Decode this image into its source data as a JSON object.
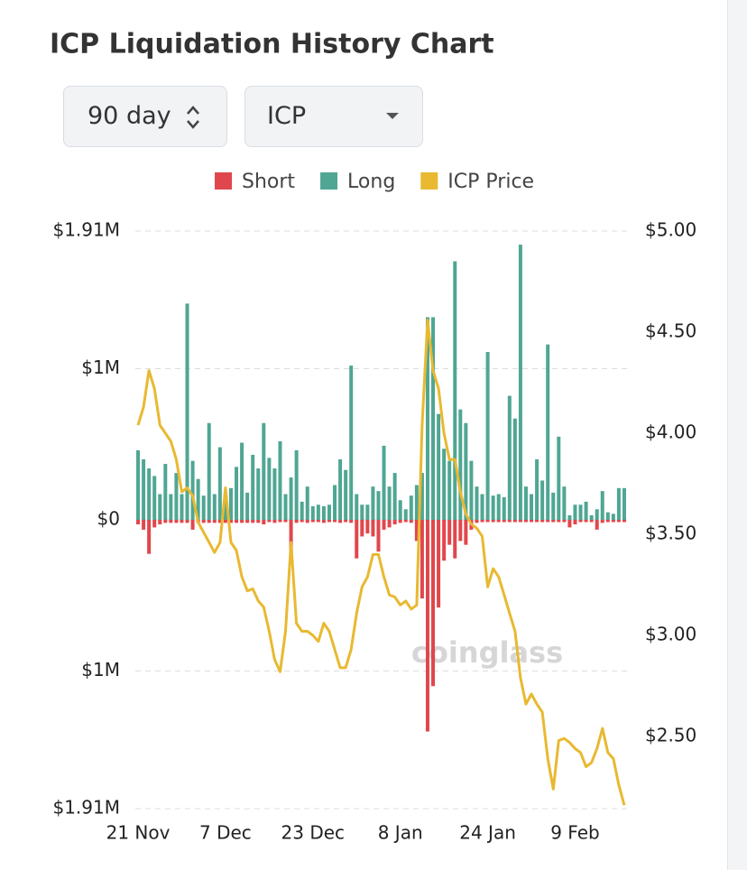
{
  "controls": {
    "period": "90 day",
    "coin": "ICP"
  },
  "chart_data": {
    "type": "bar-line",
    "title": "ICP Liquidation History Chart",
    "watermark": "coinglass",
    "categories": [
      "21 Nov",
      null,
      null,
      null,
      null,
      null,
      null,
      null,
      null,
      null,
      null,
      null,
      null,
      null,
      null,
      null,
      "7 Dec",
      null,
      null,
      null,
      null,
      null,
      null,
      null,
      null,
      null,
      null,
      null,
      null,
      null,
      null,
      null,
      "23 Dec",
      null,
      null,
      null,
      null,
      null,
      null,
      null,
      null,
      null,
      null,
      null,
      null,
      null,
      null,
      null,
      "8 Jan",
      null,
      null,
      null,
      null,
      null,
      null,
      null,
      null,
      null,
      null,
      null,
      null,
      null,
      null,
      null,
      "24 Jan",
      null,
      null,
      null,
      null,
      null,
      null,
      null,
      null,
      null,
      null,
      null,
      null,
      null,
      null,
      null,
      "9 Feb",
      null,
      null,
      null,
      null,
      null,
      null,
      null,
      null,
      null
    ],
    "series": [
      {
        "name": "Short",
        "color": "#e0474c",
        "values": [
          -30000,
          -65000,
          -225000,
          -50000,
          -30000,
          -20000,
          -20000,
          -20000,
          -20000,
          -20000,
          -65000,
          -20000,
          -20000,
          -20000,
          -20000,
          -20000,
          -20000,
          -20000,
          -20000,
          -20000,
          -20000,
          -20000,
          -20000,
          -30000,
          -15000,
          -20000,
          -15000,
          -15000,
          -210000,
          -20000,
          -15000,
          -20000,
          -15000,
          -15000,
          -20000,
          -15000,
          -15000,
          -20000,
          -15000,
          -20000,
          -255000,
          -110000,
          -90000,
          -110000,
          -210000,
          -65000,
          -50000,
          -30000,
          -20000,
          -15000,
          -20000,
          -140000,
          -520000,
          -1400000,
          -1100000,
          -580000,
          -270000,
          -165000,
          -255000,
          -140000,
          -165000,
          -65000,
          -20000,
          -15000,
          -15000,
          -15000,
          -15000,
          -15000,
          -15000,
          -15000,
          -15000,
          -15000,
          -15000,
          -15000,
          -15000,
          -15000,
          -15000,
          -15000,
          -15000,
          -50000,
          -30000,
          -15000,
          -15000,
          -15000,
          -65000,
          -20000,
          -15000,
          -15000,
          -15000,
          -15000
        ]
      },
      {
        "name": "Long",
        "color": "#4fa693",
        "values": [
          460000,
          400000,
          340000,
          290000,
          170000,
          370000,
          170000,
          310000,
          170000,
          1430000,
          390000,
          270000,
          160000,
          640000,
          170000,
          480000,
          160000,
          210000,
          350000,
          510000,
          180000,
          430000,
          340000,
          640000,
          410000,
          340000,
          520000,
          170000,
          280000,
          460000,
          120000,
          220000,
          90000,
          100000,
          90000,
          100000,
          230000,
          400000,
          330000,
          1020000,
          170000,
          100000,
          100000,
          220000,
          190000,
          490000,
          220000,
          310000,
          130000,
          70000,
          160000,
          230000,
          310000,
          1340000,
          1340000,
          700000,
          470000,
          390000,
          1710000,
          730000,
          640000,
          390000,
          220000,
          170000,
          1110000,
          160000,
          170000,
          150000,
          820000,
          670000,
          1820000,
          220000,
          170000,
          400000,
          260000,
          1160000,
          180000,
          550000,
          220000,
          30000,
          100000,
          100000,
          120000,
          30000,
          70000,
          190000,
          50000,
          40000,
          210000,
          210000
        ]
      },
      {
        "name": "ICP Price",
        "color": "#e8b931",
        "axis": "y2",
        "values": [
          4.04,
          4.13,
          4.31,
          4.22,
          4.04,
          4.0,
          3.96,
          3.87,
          3.71,
          3.73,
          3.69,
          3.56,
          3.51,
          3.46,
          3.41,
          3.46,
          3.73,
          3.46,
          3.42,
          3.29,
          3.22,
          3.23,
          3.17,
          3.14,
          3.02,
          2.88,
          2.82,
          3.02,
          3.46,
          3.06,
          3.02,
          3.02,
          3.0,
          2.97,
          3.06,
          3.02,
          2.93,
          2.84,
          2.84,
          2.93,
          3.11,
          3.24,
          3.29,
          3.4,
          3.4,
          3.29,
          3.2,
          3.19,
          3.15,
          3.17,
          3.13,
          3.15,
          4.04,
          4.56,
          4.31,
          4.22,
          4.0,
          3.87,
          3.87,
          3.71,
          3.6,
          3.55,
          3.53,
          3.49,
          3.24,
          3.33,
          3.29,
          3.2,
          3.11,
          3.02,
          2.79,
          2.66,
          2.71,
          2.66,
          2.62,
          2.39,
          2.24,
          2.48,
          2.49,
          2.47,
          2.44,
          2.42,
          2.35,
          2.37,
          2.44,
          2.54,
          2.42,
          2.39,
          2.26,
          2.16
        ]
      }
    ],
    "ylim": [
      -1910000,
      1910000
    ],
    "yticks": [
      {
        "value": 1910000,
        "label": "$1.91M"
      },
      {
        "value": 1000000,
        "label": "$1M"
      },
      {
        "value": 0,
        "label": "$0"
      },
      {
        "value": -1000000,
        "label": "$1M"
      },
      {
        "value": -1910000,
        "label": "$1.91M"
      }
    ],
    "y2lim": [
      2.143,
      5.0
    ],
    "y2ticks": [
      {
        "value": 5,
        "label": "$5.00"
      },
      {
        "value": 4.5,
        "label": "$4.50"
      },
      {
        "value": 4,
        "label": "$4.00"
      },
      {
        "value": 3.5,
        "label": "$3.50"
      },
      {
        "value": 3,
        "label": "$3.00"
      },
      {
        "value": 2.5,
        "label": "$2.50"
      }
    ],
    "grid": true,
    "legend": "top"
  }
}
